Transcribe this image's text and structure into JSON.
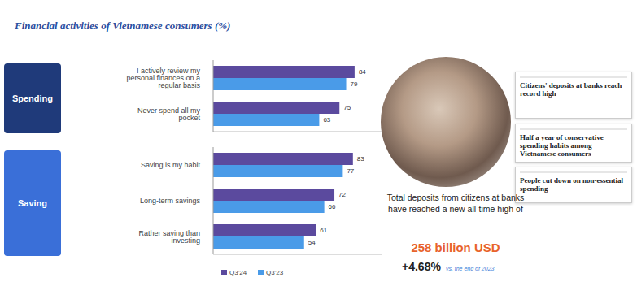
{
  "title": "Financial activities of Vietnamese consumers (%)",
  "chart_data": [
    {
      "type": "bar",
      "title": "Spending",
      "orientation": "horizontal",
      "categories": [
        "I actively review my personal finances on a regular basis",
        "Never spend all my pocket"
      ],
      "series": [
        {
          "name": "Q3'24",
          "color": "#5b4a9e",
          "values": [
            84,
            75
          ]
        },
        {
          "name": "Q3'23",
          "color": "#4a9be8",
          "values": [
            79,
            63
          ]
        }
      ],
      "xlim": [
        0,
        100
      ],
      "tick_labels": "y",
      "data_labels": true,
      "color": "#1f3a7a"
    },
    {
      "type": "bar",
      "title": "Saving",
      "orientation": "horizontal",
      "categories": [
        "Saving is my habit",
        "Long-term savings",
        "Rather saving than investing"
      ],
      "series": [
        {
          "name": "Q3'24",
          "color": "#5b4a9e",
          "values": [
            83,
            72,
            61
          ]
        },
        {
          "name": "Q3'23",
          "color": "#4a9be8",
          "values": [
            77,
            66,
            54
          ]
        }
      ],
      "xlim": [
        0,
        100
      ],
      "tick_labels": "y",
      "data_labels": true,
      "legend": "bottom",
      "color": "#3a6fd8"
    }
  ],
  "side_panel": {
    "headlines": [
      "Citizens' deposits at banks reach record high",
      "Half a year of conservative spending habits among Vietnamese consumers",
      "People cut down on non-essential spending"
    ],
    "caption": "Total deposits from citizens at banks have reached a new all-time high of",
    "highlight": "258 billion USD",
    "change": "+4.68%",
    "change_note": "vs. the end of 2023"
  }
}
